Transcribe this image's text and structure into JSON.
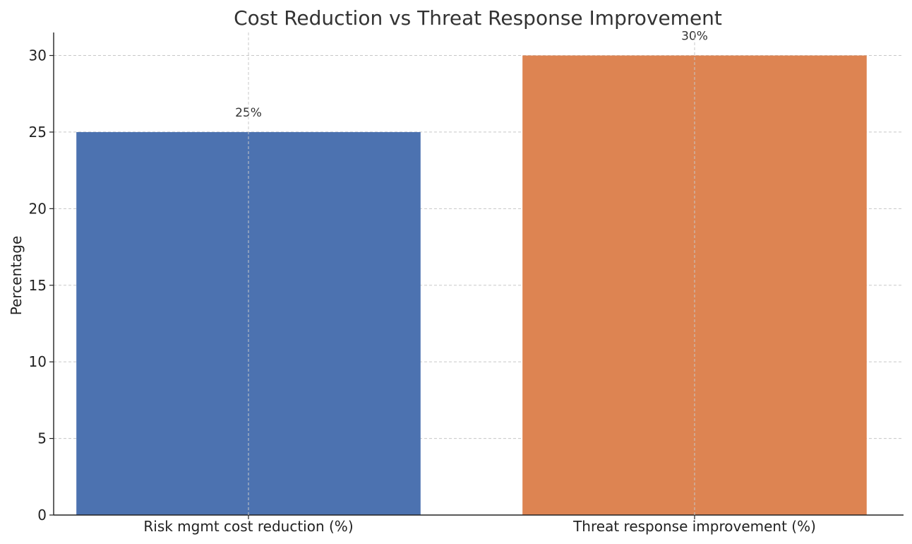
{
  "chart_data": {
    "type": "bar",
    "title": "Cost Reduction vs Threat Response Improvement",
    "xlabel": "",
    "ylabel": "Percentage",
    "categories": [
      "Risk mgmt cost reduction (%)",
      "Threat response improvement (%)"
    ],
    "values": [
      25,
      30
    ],
    "data_labels": [
      "25%",
      "30%"
    ],
    "colors": [
      "#4c72b0",
      "#dd8452"
    ],
    "ylim": [
      0,
      31.5
    ],
    "yticks": [
      0,
      5,
      10,
      15,
      20,
      25,
      30
    ],
    "ytick_labels": [
      "0",
      "5",
      "10",
      "15",
      "20",
      "25",
      "30"
    ],
    "grid": true,
    "legend": "none"
  }
}
